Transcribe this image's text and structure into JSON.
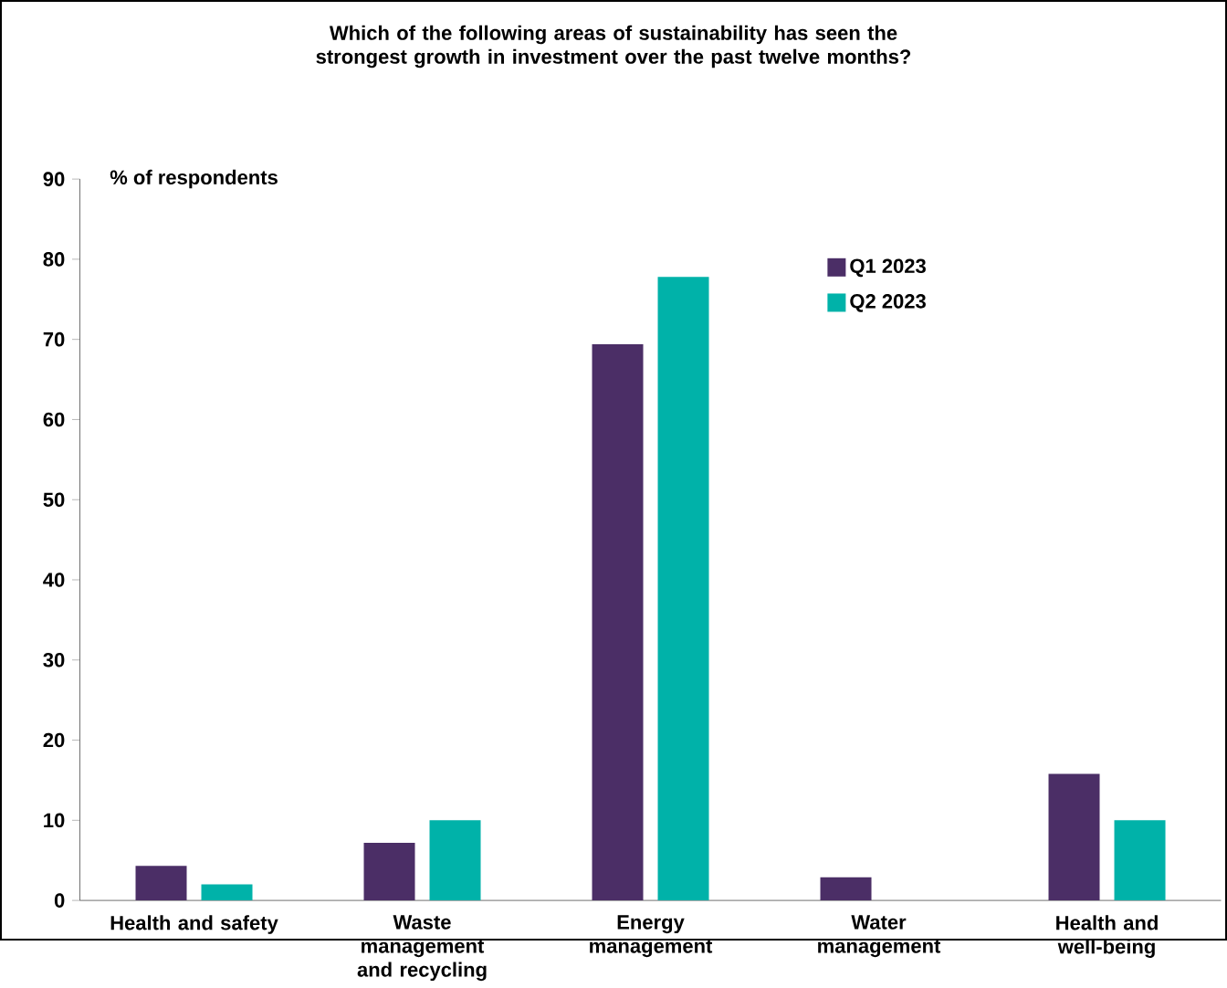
{
  "chart_data": {
    "type": "bar",
    "title": "Which of the following areas of sustainability has seen the strongest growth in investment over the past twelve months?",
    "ylabel": "% of respondents",
    "categories": [
      "Health and safety",
      "Waste management and recycling",
      "Energy management",
      "Water management",
      "Health and well-being"
    ],
    "series": [
      {
        "name": "Q1 2023",
        "color": "#4b2e66",
        "values": [
          4.3,
          7.2,
          69.4,
          2.9,
          15.8
        ]
      },
      {
        "name": "Q2 2023",
        "color": "#00b2a9",
        "values": [
          2,
          10,
          77.8,
          0,
          10
        ]
      }
    ],
    "ylim": [
      0,
      90
    ],
    "yticks": [
      0,
      10,
      20,
      30,
      40,
      50,
      60,
      70,
      80,
      90
    ],
    "legend": "top right"
  }
}
